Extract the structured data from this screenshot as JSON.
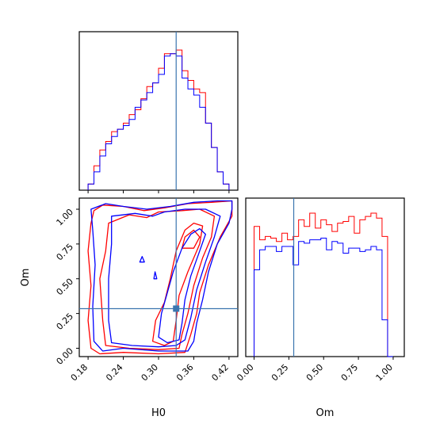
{
  "chart_data": [
    {
      "type": "histogram",
      "panel": "top-left",
      "parameter": "H0",
      "x_range": [
        0.165,
        0.435
      ],
      "bin_edges": [
        0.18,
        0.19,
        0.2,
        0.21,
        0.22,
        0.23,
        0.24,
        0.25,
        0.26,
        0.27,
        0.28,
        0.29,
        0.3,
        0.31,
        0.32,
        0.33,
        0.34,
        0.35,
        0.36,
        0.37,
        0.38,
        0.39,
        0.4,
        0.41,
        0.42
      ],
      "series": [
        {
          "color": "#ff0000",
          "counts": [
            5,
            20,
            33,
            40,
            48,
            50,
            55,
            62,
            66,
            75,
            85,
            88,
            100,
            112,
            112,
            115,
            98,
            90,
            83,
            80,
            55,
            35,
            15,
            5
          ]
        },
        {
          "color": "#0000ff",
          "counts": [
            5,
            15,
            28,
            38,
            44,
            50,
            53,
            58,
            68,
            74,
            80,
            88,
            95,
            110,
            112,
            110,
            92,
            83,
            78,
            68,
            55,
            35,
            15,
            5
          ]
        }
      ],
      "truth_line": 0.33,
      "y_range": [
        0,
        130
      ]
    },
    {
      "type": "contour",
      "panel": "bottom-left",
      "x_param": "H0",
      "y_param": "Om",
      "xlabel": "H0",
      "ylabel": "Om",
      "x_range": [
        0.165,
        0.435
      ],
      "y_range": [
        -0.06,
        1.08
      ],
      "x_ticks": [
        "0.18",
        "0.24",
        "0.30",
        "0.36",
        "0.42"
      ],
      "x_tick_values": [
        0.18,
        0.24,
        0.3,
        0.36,
        0.42
      ],
      "y_ticks": [
        "0.00",
        "0.25",
        "0.50",
        "0.75",
        "1.00"
      ],
      "y_tick_values": [
        0.0,
        0.25,
        0.5,
        0.75,
        1.0
      ],
      "truth_point": [
        0.33,
        0.285
      ],
      "series": [
        {
          "color": "#ff0000",
          "contours": [
            [
              [
                0.19,
                0.99
              ],
              [
                0.205,
                1.03
              ],
              [
                0.24,
                1.02
              ],
              [
                0.275,
                0.99
              ],
              [
                0.31,
                1.01
              ],
              [
                0.35,
                1.04
              ],
              [
                0.39,
                1.05
              ],
              [
                0.425,
                1.06
              ],
              [
                0.425,
                0.95
              ],
              [
                0.405,
                0.8
              ],
              [
                0.385,
                0.6
              ],
              [
                0.37,
                0.4
              ],
              [
                0.365,
                0.25
              ],
              [
                0.355,
                0.1
              ],
              [
                0.345,
                -0.03
              ],
              [
                0.3,
                -0.04
              ],
              [
                0.24,
                -0.03
              ],
              [
                0.2,
                -0.04
              ],
              [
                0.185,
                0.0
              ],
              [
                0.18,
                0.2
              ],
              [
                0.185,
                0.45
              ],
              [
                0.18,
                0.7
              ],
              [
                0.185,
                0.9
              ],
              [
                0.19,
                0.99
              ]
            ],
            [
              [
                0.2,
                0.5
              ],
              [
                0.21,
                0.7
              ],
              [
                0.215,
                0.9
              ],
              [
                0.25,
                0.96
              ],
              [
                0.28,
                0.94
              ],
              [
                0.3,
                0.98
              ],
              [
                0.34,
                0.99
              ],
              [
                0.37,
                1.0
              ],
              [
                0.395,
                0.95
              ],
              [
                0.39,
                0.8
              ],
              [
                0.375,
                0.65
              ],
              [
                0.36,
                0.45
              ],
              [
                0.35,
                0.25
              ],
              [
                0.34,
                0.1
              ],
              [
                0.335,
                0.0
              ],
              [
                0.3,
                -0.01
              ],
              [
                0.25,
                0.0
              ],
              [
                0.21,
                0.02
              ],
              [
                0.205,
                0.2
              ],
              [
                0.2,
                0.5
              ]
            ],
            [
              [
                0.29,
                0.05
              ],
              [
                0.295,
                0.2
              ],
              [
                0.31,
                0.33
              ],
              [
                0.32,
                0.5
              ],
              [
                0.33,
                0.7
              ],
              [
                0.345,
                0.85
              ],
              [
                0.36,
                0.9
              ],
              [
                0.375,
                0.88
              ],
              [
                0.37,
                0.75
              ],
              [
                0.35,
                0.55
              ],
              [
                0.335,
                0.38
              ],
              [
                0.33,
                0.2
              ],
              [
                0.325,
                0.05
              ],
              [
                0.31,
                0.02
              ],
              [
                0.29,
                0.05
              ]
            ],
            [
              [
                0.34,
                0.72
              ],
              [
                0.345,
                0.8
              ],
              [
                0.36,
                0.85
              ],
              [
                0.37,
                0.8
              ],
              [
                0.36,
                0.72
              ],
              [
                0.34,
                0.72
              ]
            ]
          ]
        },
        {
          "color": "#0000ff",
          "contours": [
            [
              [
                0.185,
                1.0
              ],
              [
                0.21,
                1.04
              ],
              [
                0.24,
                1.02
              ],
              [
                0.28,
                1.0
              ],
              [
                0.32,
                1.02
              ],
              [
                0.36,
                1.05
              ],
              [
                0.4,
                1.06
              ],
              [
                0.425,
                1.06
              ],
              [
                0.425,
                1.0
              ],
              [
                0.42,
                0.9
              ],
              [
                0.4,
                0.75
              ],
              [
                0.385,
                0.55
              ],
              [
                0.375,
                0.35
              ],
              [
                0.365,
                0.18
              ],
              [
                0.36,
                0.05
              ],
              [
                0.35,
                -0.02
              ],
              [
                0.3,
                -0.02
              ],
              [
                0.24,
                0.0
              ],
              [
                0.205,
                -0.02
              ],
              [
                0.19,
                0.05
              ],
              [
                0.188,
                0.3
              ],
              [
                0.192,
                0.6
              ],
              [
                0.188,
                0.85
              ],
              [
                0.185,
                1.0
              ]
            ],
            [
              [
                0.215,
                0.5
              ],
              [
                0.22,
                0.75
              ],
              [
                0.22,
                0.95
              ],
              [
                0.26,
                0.97
              ],
              [
                0.29,
                0.95
              ],
              [
                0.31,
                0.98
              ],
              [
                0.345,
                1.0
              ],
              [
                0.38,
                1.0
              ],
              [
                0.405,
                0.95
              ],
              [
                0.395,
                0.8
              ],
              [
                0.38,
                0.62
              ],
              [
                0.365,
                0.42
              ],
              [
                0.355,
                0.22
              ],
              [
                0.345,
                0.06
              ],
              [
                0.33,
                0.02
              ],
              [
                0.3,
                0.01
              ],
              [
                0.255,
                0.02
              ],
              [
                0.22,
                0.04
              ],
              [
                0.215,
                0.2
              ],
              [
                0.215,
                0.5
              ]
            ],
            [
              [
                0.3,
                0.08
              ],
              [
                0.305,
                0.25
              ],
              [
                0.315,
                0.4
              ],
              [
                0.325,
                0.55
              ],
              [
                0.34,
                0.72
              ],
              [
                0.355,
                0.82
              ],
              [
                0.37,
                0.86
              ],
              [
                0.38,
                0.82
              ],
              [
                0.37,
                0.7
              ],
              [
                0.355,
                0.52
              ],
              [
                0.345,
                0.35
              ],
              [
                0.34,
                0.18
              ],
              [
                0.335,
                0.06
              ],
              [
                0.315,
                0.04
              ],
              [
                0.3,
                0.08
              ]
            ],
            [
              [
                0.268,
                0.62
              ],
              [
                0.272,
                0.66
              ],
              [
                0.276,
                0.62
              ],
              [
                0.268,
                0.62
              ]
            ],
            [
              [
                0.292,
                0.5
              ],
              [
                0.294,
                0.55
              ],
              [
                0.297,
                0.5
              ],
              [
                0.292,
                0.5
              ]
            ]
          ]
        }
      ]
    },
    {
      "type": "histogram",
      "panel": "bottom-right",
      "parameter": "Om",
      "xlabel": "Om",
      "x_range": [
        -0.06,
        1.08
      ],
      "x_ticks": [
        "0.00",
        "0.25",
        "0.50",
        "0.75",
        "1.00"
      ],
      "x_tick_values": [
        0.0,
        0.25,
        0.5,
        0.75,
        1.0
      ],
      "bin_edges": [
        0.0,
        0.04,
        0.08,
        0.12,
        0.16,
        0.2,
        0.24,
        0.28,
        0.32,
        0.36,
        0.4,
        0.44,
        0.48,
        0.52,
        0.56,
        0.6,
        0.64,
        0.68,
        0.72,
        0.76,
        0.8,
        0.84,
        0.88,
        0.92,
        0.96,
        1.0
      ],
      "series": [
        {
          "color": "#ff0000",
          "counts": [
            78,
            70,
            72,
            71,
            69,
            74,
            70,
            72,
            82,
            78,
            86,
            77,
            82,
            79,
            75,
            80,
            81,
            84,
            74,
            82,
            84,
            86,
            83,
            72,
            0
          ]
        },
        {
          "color": "#0000ff",
          "counts": [
            52,
            64,
            66,
            66,
            63,
            66,
            66,
            55,
            69,
            68,
            70,
            70,
            71,
            64,
            69,
            68,
            62,
            65,
            65,
            63,
            64,
            66,
            64,
            22,
            0
          ]
        }
      ],
      "truth_line": 0.285,
      "y_range": [
        0,
        95
      ]
    }
  ]
}
